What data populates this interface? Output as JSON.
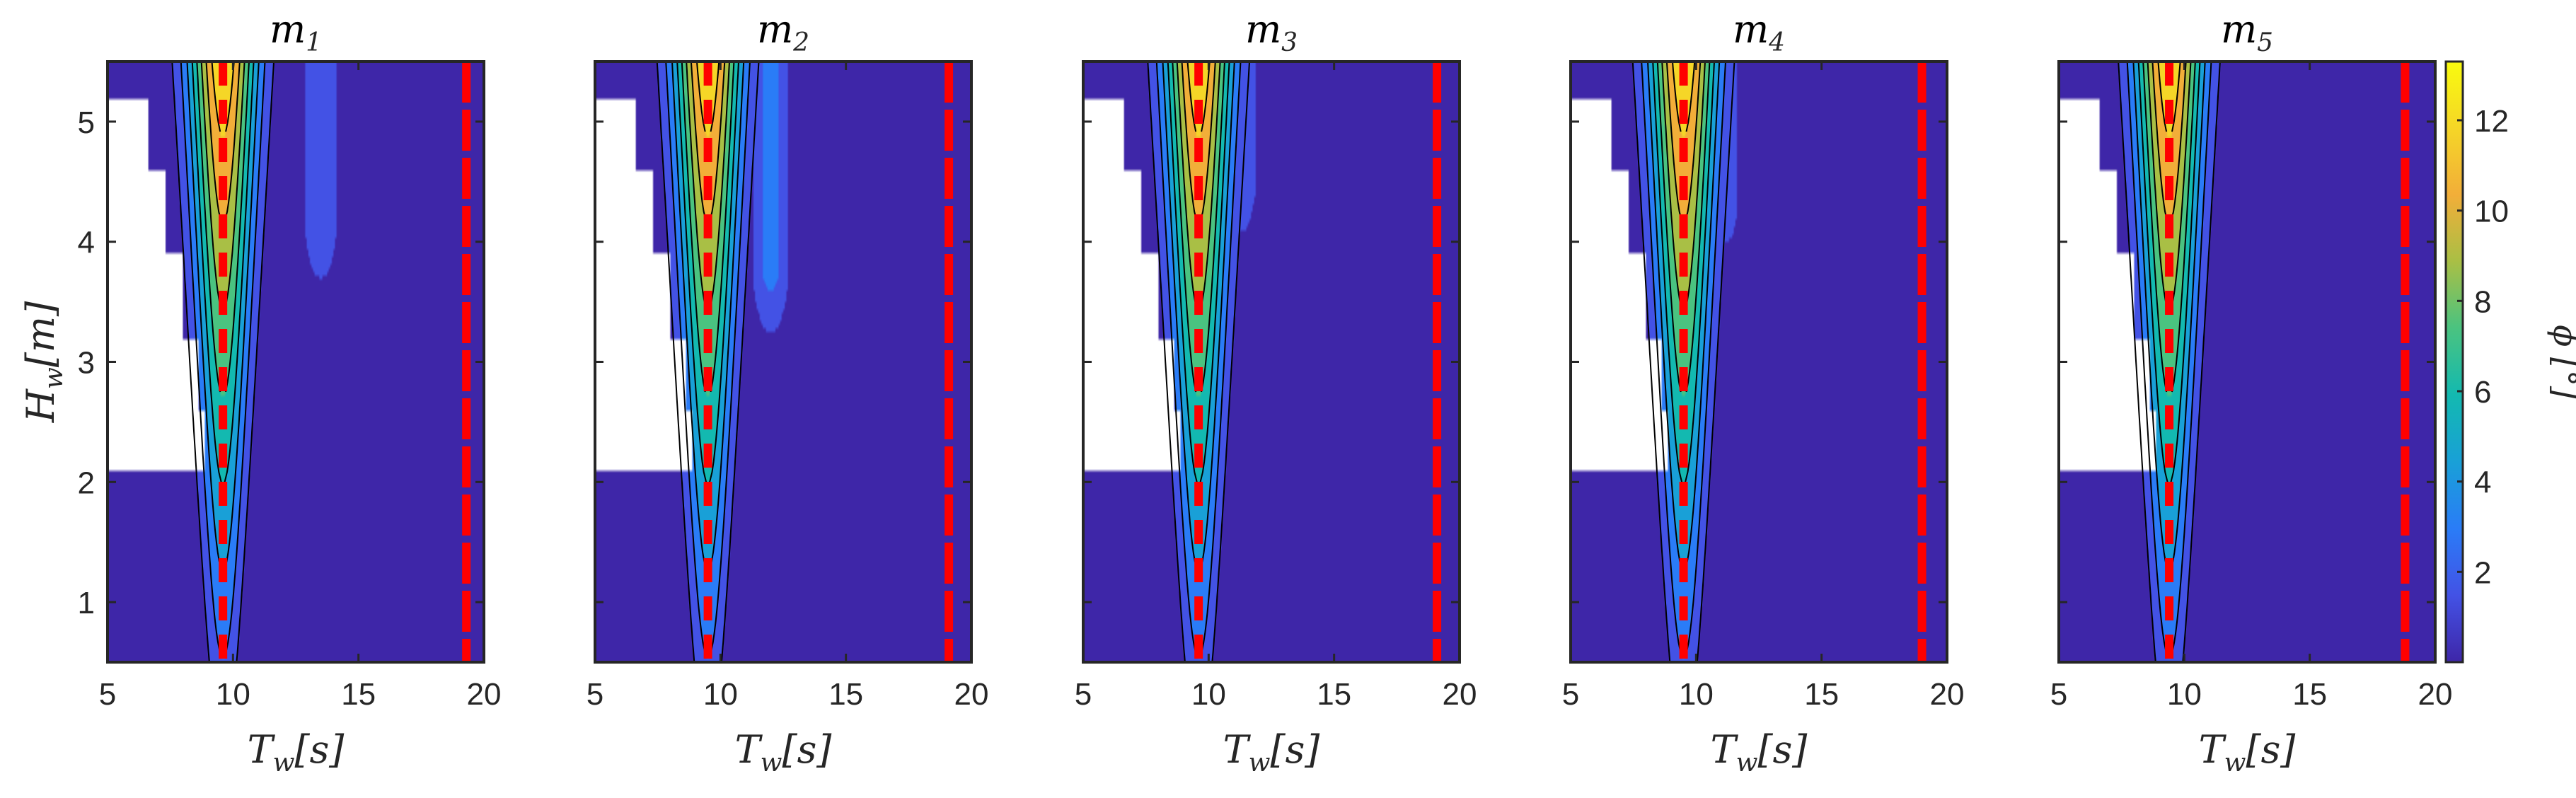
{
  "chart_data": {
    "type": "contour",
    "panels": [
      {
        "title_base": "m",
        "title_sub": "1",
        "resonance_period": 9.6,
        "secondary_period": 19.3,
        "blank_max_T": [
          5.0,
          6.6,
          7.3,
          8.0,
          8.6,
          8.9
        ],
        "extra_lobe": {
          "T": 13.5,
          "H_bottom": 3.3,
          "peak": 3.0
        }
      },
      {
        "title_base": "m",
        "title_sub": "2",
        "resonance_period": 9.5,
        "secondary_period": 19.1,
        "blank_max_T": [
          5.0,
          6.6,
          7.3,
          8.0,
          8.6,
          8.9
        ],
        "extra_lobe": {
          "T": 12.0,
          "H_bottom": 2.9,
          "peak": 3.5
        }
      },
      {
        "title_base": "m",
        "title_sub": "3",
        "resonance_period": 9.6,
        "secondary_period": 19.1,
        "blank_max_T": [
          5.0,
          6.6,
          7.3,
          8.0,
          8.6,
          8.9
        ],
        "extra_lobe": {
          "T": 11.3,
          "H_bottom": 3.6,
          "peak": 2.5
        }
      },
      {
        "title_base": "m",
        "title_sub": "4",
        "resonance_period": 9.5,
        "secondary_period": 19.0,
        "blank_max_T": [
          5.0,
          6.6,
          7.3,
          8.0,
          8.6,
          8.9
        ],
        "extra_lobe": {
          "T": 11.2,
          "H_bottom": 3.4,
          "peak": 2.0
        }
      },
      {
        "title_base": "m",
        "title_sub": "5",
        "resonance_period": 9.4,
        "secondary_period": 18.8,
        "blank_max_T": [
          5.0,
          6.6,
          7.3,
          8.0,
          8.6,
          8.9
        ],
        "extra_lobe": {
          "T": 10.7,
          "H_bottom": 4.1,
          "peak": 1.5
        }
      }
    ],
    "xlabel_base": "T",
    "xlabel_sub": "w",
    "xlabel_unit": "[s]",
    "ylabel_base": "H",
    "ylabel_sub": "w",
    "ylabel_unit": "[m]",
    "x_range": [
      5,
      20
    ],
    "y_range": [
      0.5,
      5.5
    ],
    "x_ticks": [
      "5",
      "10",
      "15",
      "20"
    ],
    "x_tick_values": [
      5,
      10,
      15,
      20
    ],
    "y_ticks": [
      "1",
      "2",
      "3",
      "4",
      "5"
    ],
    "y_tick_values": [
      1,
      2,
      3,
      4,
      5
    ],
    "colorbar": {
      "label": "ϕ [°]",
      "range": [
        0,
        13.3
      ],
      "ticks": [
        "2",
        "4",
        "6",
        "8",
        "10",
        "12"
      ],
      "tick_values": [
        2,
        4,
        6,
        8,
        10,
        12
      ],
      "levels": [
        0,
        1.5,
        3,
        4.5,
        6,
        7.5,
        9,
        10.5,
        12,
        13.3
      ],
      "colormap": [
        "#3e26a8",
        "#4352e5",
        "#2a7cf7",
        "#19a0d7",
        "#13b9b0",
        "#4ac380",
        "#a9bf45",
        "#f2ae39",
        "#f5d627",
        "#f9fb0e"
      ]
    },
    "peak_value": 13.3,
    "reference_line_color": "#ff0000",
    "background_color": "#3e26a8"
  }
}
